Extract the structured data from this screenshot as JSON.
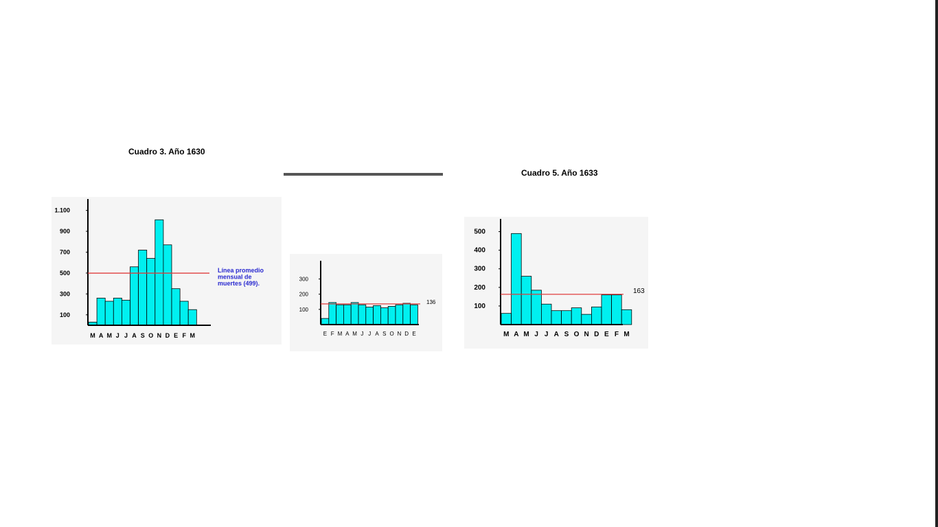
{
  "colors": {
    "bar_fill": "#00f0f0",
    "bar_stroke": "#000000",
    "average_line": "#e03c3c",
    "annotation_blue": "#2a2ad0",
    "panel_bg": "#f5f5f5"
  },
  "chart_data": [
    {
      "type": "bar",
      "title": "Cuadro 3. Año 1630",
      "categories": [
        "M",
        "A",
        "M",
        "J",
        "J",
        "A",
        "S",
        "O",
        "N",
        "D",
        "E",
        "F",
        "M"
      ],
      "values": [
        30,
        260,
        230,
        260,
        240,
        560,
        720,
        640,
        1010,
        770,
        350,
        230,
        150
      ],
      "yticks": [
        "100",
        "300",
        "500",
        "700",
        "900",
        "1.100"
      ],
      "ylim": [
        0,
        1150
      ],
      "average": 499,
      "average_label": [
        "Línea promedio",
        "mensual de",
        "muertes (499)."
      ],
      "xlabel": "",
      "ylabel": ""
    },
    {
      "type": "bar",
      "title": "",
      "categories": [
        "E",
        "F",
        "M",
        "A",
        "M",
        "J",
        "J",
        "A",
        "S",
        "O",
        "N",
        "D",
        "E"
      ],
      "values": [
        40,
        145,
        130,
        130,
        145,
        130,
        115,
        125,
        110,
        120,
        130,
        140,
        130
      ],
      "yticks": [
        "100",
        "200",
        "300"
      ],
      "ylim": [
        0,
        420
      ],
      "average": 136,
      "average_label": [
        "136"
      ],
      "xlabel": "",
      "ylabel": ""
    },
    {
      "type": "bar",
      "title": "Cuadro 5. Año 1633",
      "categories": [
        "M",
        "A",
        "M",
        "J",
        "J",
        "A",
        "S",
        "O",
        "N",
        "D",
        "E",
        "F",
        "M"
      ],
      "values": [
        60,
        490,
        260,
        185,
        110,
        75,
        75,
        90,
        55,
        95,
        160,
        160,
        80
      ],
      "yticks": [
        "100",
        "200",
        "300",
        "400",
        "500"
      ],
      "ylim": [
        0,
        550
      ],
      "average": 163,
      "average_label": [
        "163"
      ],
      "xlabel": "",
      "ylabel": ""
    }
  ]
}
